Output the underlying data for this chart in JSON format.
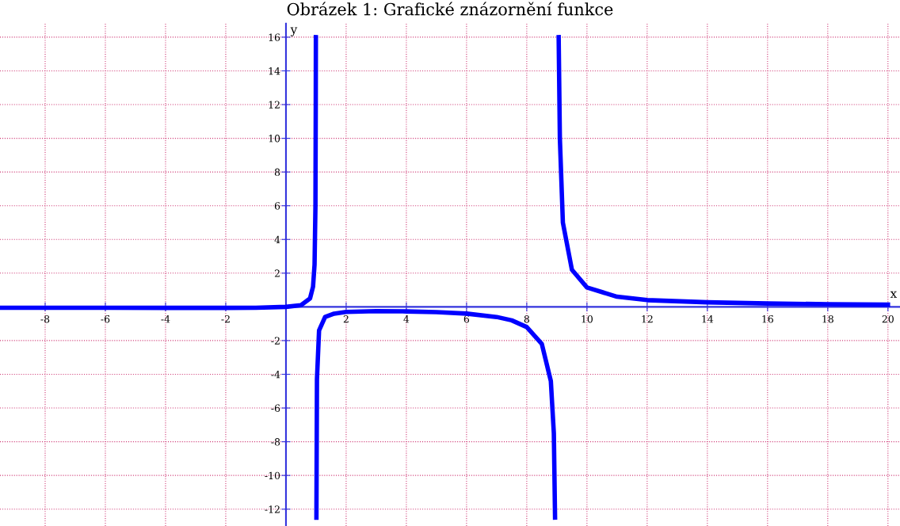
{
  "chart_data": {
    "type": "line",
    "title": "Obrázek 1: Grafické znázornění funkce",
    "xlabel": "x",
    "ylabel": "y",
    "series": [
      {
        "color": "#0000ff",
        "x": [
          -9.5,
          -8,
          -6,
          -4,
          -2,
          -1,
          0,
          0.5,
          0.8,
          0.9,
          0.95,
          0.98,
          0.99,
          0.994,
          1,
          1.012,
          1.03,
          1.1,
          1.3,
          1.6,
          2,
          3,
          4,
          5,
          6,
          7,
          7.5,
          8,
          8.5,
          8.8,
          8.9,
          8.94,
          9,
          9.06,
          9.1,
          9.2,
          9.5,
          10,
          11,
          12,
          14,
          16,
          18,
          20
        ],
        "values": [
          -0.05,
          -0.05,
          -0.05,
          -0.06,
          -0.06,
          -0.05,
          0,
          0.1,
          0.5,
          1.2,
          2.5,
          6,
          12,
          16,
          null,
          -12.5,
          -4.3,
          -1.4,
          -0.6,
          -0.4,
          -0.3,
          -0.25,
          -0.27,
          -0.31,
          -0.4,
          -0.6,
          -0.8,
          -1.2,
          -2.2,
          -4.4,
          -7.5,
          -12.5,
          null,
          16,
          10,
          5,
          2.2,
          1.15,
          0.6,
          0.4,
          0.27,
          0.2,
          0.16,
          0.13
        ]
      }
    ],
    "xlim": [
      -9.5,
      20.4
    ],
    "ylim": [
      -13,
      16.8
    ],
    "xticks": [
      -8,
      -6,
      -4,
      -2,
      2,
      4,
      6,
      8,
      10,
      12,
      14,
      16,
      18,
      20
    ],
    "yticks": [
      -12,
      -10,
      -8,
      -6,
      -4,
      -2,
      2,
      4,
      6,
      8,
      10,
      12,
      14,
      16
    ],
    "grid": true,
    "marker": "none",
    "line_style": "solid"
  }
}
